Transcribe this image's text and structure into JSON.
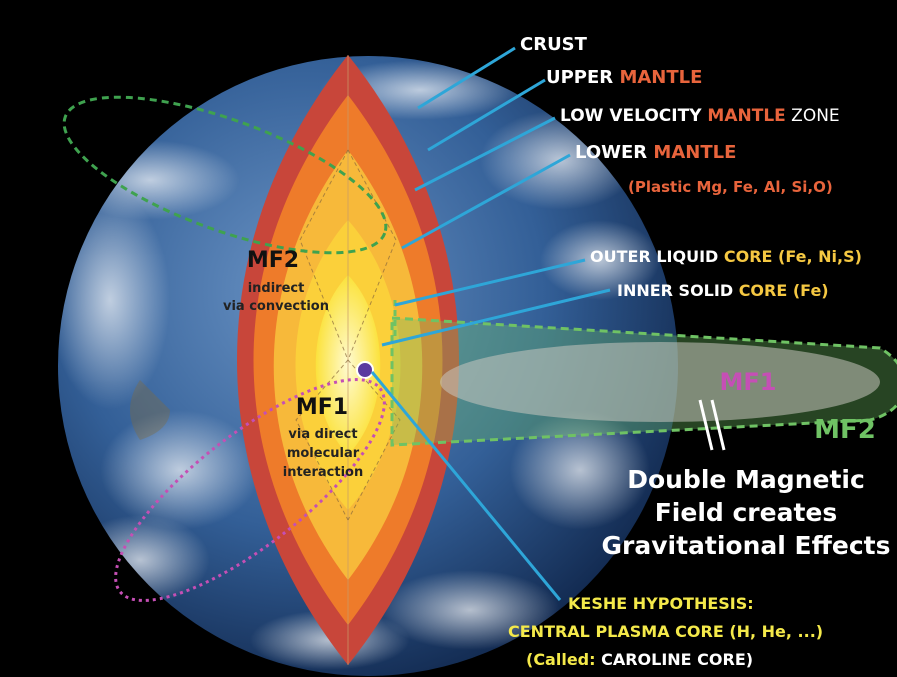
{
  "layers": {
    "crust": {
      "a": "CRUST"
    },
    "upper_mantle": {
      "a": "UPPER ",
      "b": "MANTLE"
    },
    "low_velocity": {
      "a": "LOW VELOCITY ",
      "b": "MANTLE",
      "c": " ZONE"
    },
    "lower_mantle": {
      "a": "LOWER ",
      "b": "MANTLE",
      "c": "(Plastic Mg, Fe, Al, Si,O)"
    },
    "outer_core": {
      "a": "OUTER LIQUID ",
      "b": "CORE (Fe, Ni,S)"
    },
    "inner_core": {
      "a": "INNER SOLID ",
      "b": "CORE (Fe)"
    }
  },
  "fields": {
    "mf2_inner": {
      "title": "MF2",
      "line1": "indirect",
      "line2": "via convection"
    },
    "mf1_inner": {
      "title": "MF1",
      "line1": "via direct",
      "line2": "molecular",
      "line3": "interaction"
    },
    "mf1_label": "MF1",
    "mf2_label": "MF2"
  },
  "headline": {
    "line1": "Double Magnetic",
    "line2": "Field creates",
    "line3": "Gravitational Effects"
  },
  "hypothesis": {
    "line1": "KESHE HYPOTHESIS:",
    "line2": "CENTRAL PLASMA CORE (H, He, ...)",
    "line3a": "(Called: ",
    "line3b": "CAROLINE CORE)"
  },
  "colors": {
    "background": "#000000",
    "ocean": "#2f5b92",
    "crust": "#c8463a",
    "mantle_orange": "#ee7b2a",
    "mantle_yellow": "#f7b93a",
    "core_yellow": "#fbe23c",
    "label_white": "#ffffff",
    "label_orange": "#e8643c",
    "label_gold": "#f5c842",
    "label_yellow": "#f4e94a",
    "leader_blue": "#2ea6d8",
    "mf1_magenta": "#c54fb5",
    "mf2_green": "#6fc264"
  }
}
